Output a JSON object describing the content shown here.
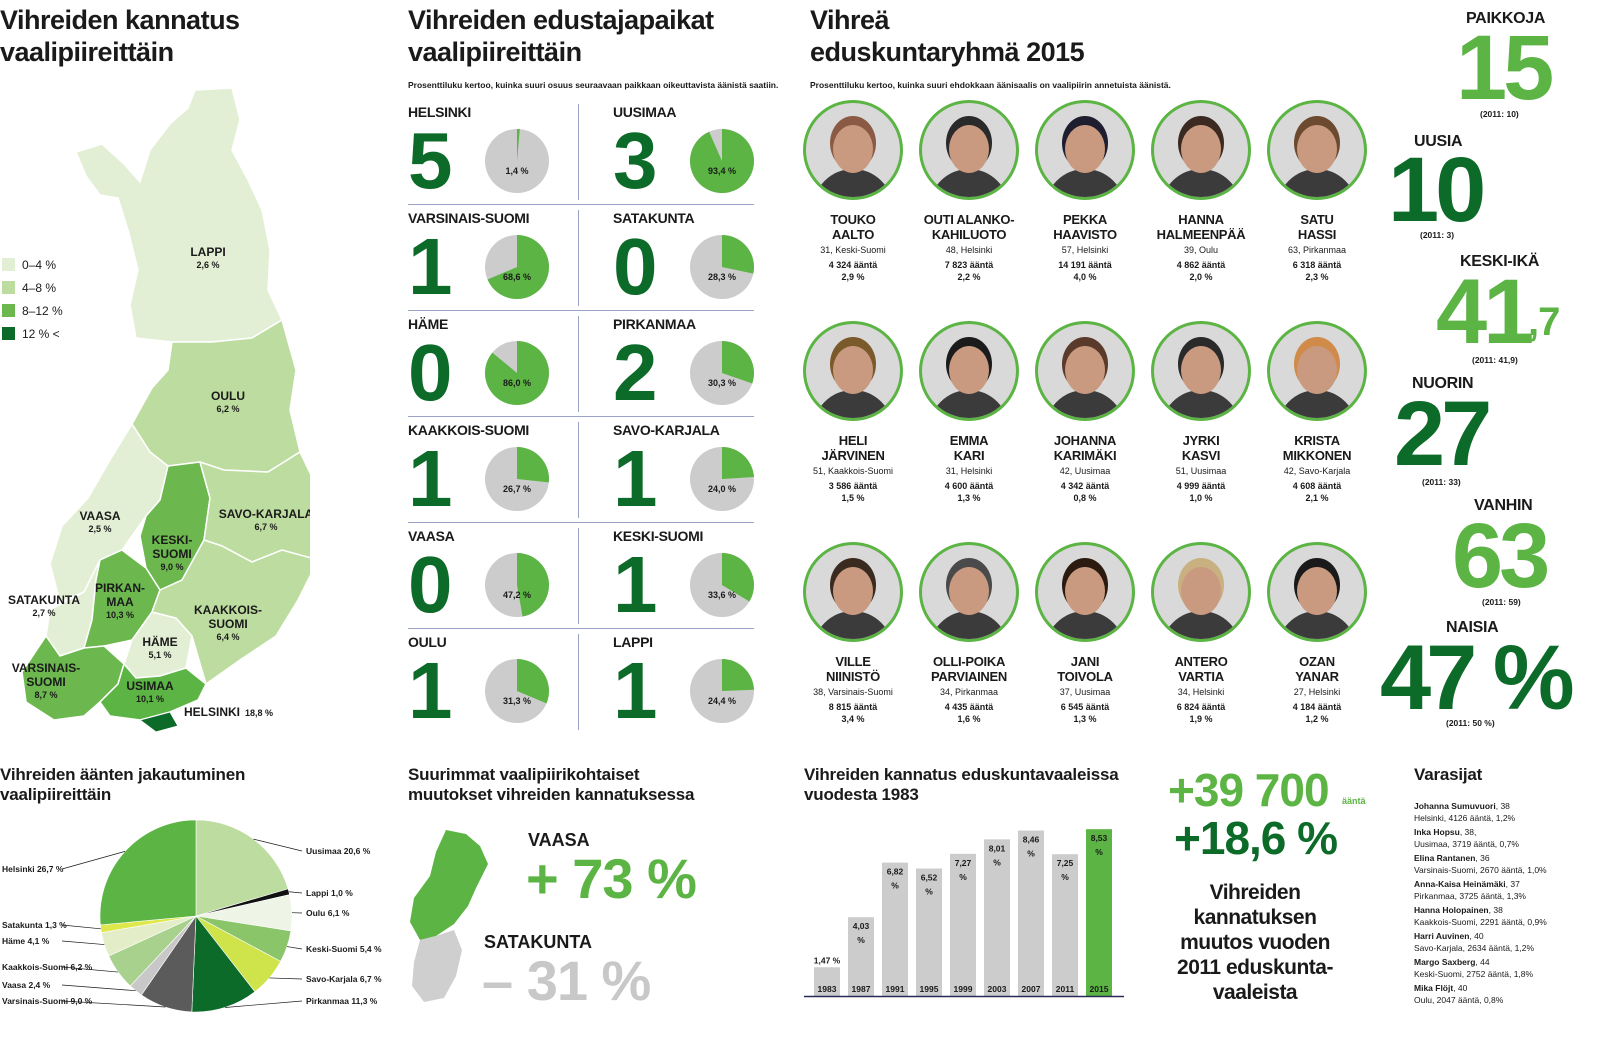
{
  "map_section": {
    "title": [
      "Vihreiden kannatus",
      "vaalipiireittäin"
    ],
    "legend": [
      "0–4 %",
      "4–8 %",
      "8–12 %",
      "12 % <"
    ],
    "legend_colors": [
      "#e2efd5",
      "#bddc9f",
      "#6cb84e",
      "#0d6b2a"
    ],
    "regions": [
      {
        "name": "LAPPI",
        "value": "2,6 %"
      },
      {
        "name": "OULU",
        "value": "6,2 %"
      },
      {
        "name": "VAASA",
        "value": "2,5 %"
      },
      {
        "name": "KESKI-SUOMI",
        "value": "9,0 %",
        "lines": [
          "KESKI-",
          "SUOMI"
        ]
      },
      {
        "name": "SAVO-KARJALA",
        "value": "6,7 %"
      },
      {
        "name": "SATAKUNTA",
        "value": "2,7 %"
      },
      {
        "name": "PIRKANMAA",
        "value": "10,3 %",
        "lines": [
          "PIRKAN-",
          "MAA"
        ]
      },
      {
        "name": "KAAKKOIS-SUOMI",
        "value": "6,4 %",
        "lines": [
          "KAAKKOIS-",
          "SUOMI"
        ]
      },
      {
        "name": "HÄME",
        "value": "5,1 %"
      },
      {
        "name": "VARSINAIS-SUOMI",
        "value": "8,7 %",
        "lines": [
          "VARSINAIS-",
          "SUOMI"
        ]
      },
      {
        "name": "USIMAA",
        "value": "10,1 %"
      },
      {
        "name": "HELSINKI",
        "value": "18,8 %"
      }
    ]
  },
  "seats_section": {
    "title": [
      "Vihreiden edustajapaikat",
      "vaalipiireittäin"
    ],
    "note": "Prosenttiluku kertoo, kuinka suuri osuus seuraavaan paikkaan oikeuttavista äänistä saatiin.",
    "districts": [
      {
        "name": "HELSINKI",
        "seats": "5",
        "pct_label": "1,4 %",
        "pct": 1.4
      },
      {
        "name": "UUSIMAA",
        "seats": "3",
        "pct_label": "93,4 %",
        "pct": 93.4
      },
      {
        "name": "VARSINAIS-SUOMI",
        "seats": "1",
        "pct_label": "68,6 %",
        "pct": 68.6
      },
      {
        "name": "SATAKUNTA",
        "seats": "0",
        "pct_label": "28,3 %",
        "pct": 28.3
      },
      {
        "name": "HÄME",
        "seats": "0",
        "pct_label": "86,0 %",
        "pct": 86.0
      },
      {
        "name": "PIRKANMAA",
        "seats": "2",
        "pct_label": "30,3 %",
        "pct": 30.3
      },
      {
        "name": "KAAKKOIS-SUOMI",
        "seats": "1",
        "pct_label": "26,7 %",
        "pct": 26.7
      },
      {
        "name": "SAVO-KARJALA",
        "seats": "1",
        "pct_label": "24,0 %",
        "pct": 24.0
      },
      {
        "name": "VAASA",
        "seats": "0",
        "pct_label": "47,2 %",
        "pct": 47.2
      },
      {
        "name": "KESKI-SUOMI",
        "seats": "1",
        "pct_label": "33,6 %",
        "pct": 33.6
      },
      {
        "name": "OULU",
        "seats": "1",
        "pct_label": "31,3 %",
        "pct": 31.3
      },
      {
        "name": "LAPPI",
        "seats": "1",
        "pct_label": "24,4 %",
        "pct": 24.4
      }
    ]
  },
  "group_section": {
    "title": [
      "Vihreä",
      "eduskuntaryhmä 2015"
    ],
    "note": "Prosenttiluku kertoo, kuinka suuri ehdokkaan äänisaalis on vaalipiirin annetuista äänistä.",
    "members": [
      {
        "name": [
          "TOUKO",
          "AALTO"
        ],
        "info": "31, Keski-Suomi",
        "votes": "4 324 ääntä",
        "pct": "2,9 %"
      },
      {
        "name": [
          "OUTI ALANKO-",
          "KAHILUOTO"
        ],
        "info": "48, Helsinki",
        "votes": "7 823 ääntä",
        "pct": "2,2 %"
      },
      {
        "name": [
          "PEKKA",
          "HAAVISTO"
        ],
        "info": "57, Helsinki",
        "votes": "14 191 ääntä",
        "pct": "4,0 %"
      },
      {
        "name": [
          "HANNA",
          "HALMEENPÄÄ"
        ],
        "info": "39, Oulu",
        "votes": "4 862 ääntä",
        "pct": "2,0 %"
      },
      {
        "name": [
          "SATU",
          "HASSI"
        ],
        "info": "63, Pirkanmaa",
        "votes": "6 318 ääntä",
        "pct": "2,3 %"
      },
      {
        "name": [
          "HELI",
          "JÄRVINEN"
        ],
        "info": "51, Kaakkois-Suomi",
        "votes": "3 586 ääntä",
        "pct": "1,5 %"
      },
      {
        "name": [
          "EMMA",
          "KARI"
        ],
        "info": "31, Helsinki",
        "votes": "4 600 ääntä",
        "pct": "1,3 %"
      },
      {
        "name": [
          "JOHANNA",
          "KARIMÄKI"
        ],
        "info": "42, Uusimaa",
        "votes": "4 342 ääntä",
        "pct": "0,8 %"
      },
      {
        "name": [
          "JYRKI",
          "KASVI"
        ],
        "info": "51, Uusimaa",
        "votes": "4 999 ääntä",
        "pct": "1,0 %"
      },
      {
        "name": [
          "KRISTA",
          "MIKKONEN"
        ],
        "info": "42, Savo-Karjala",
        "votes": "4 608 ääntä",
        "pct": "2,1 %"
      },
      {
        "name": [
          "VILLE",
          "NIINISTÖ"
        ],
        "info": "38, Varsinais-Suomi",
        "votes": "8 815 ääntä",
        "pct": "3,4 %"
      },
      {
        "name": [
          "OLLI-POIKA",
          "PARVIAINEN"
        ],
        "info": "34, Pirkanmaa",
        "votes": "4 435 ääntä",
        "pct": "1,6 %"
      },
      {
        "name": [
          "JANI",
          "TOIVOLA"
        ],
        "info": "37, Uusimaa",
        "votes": "6 545 ääntä",
        "pct": "1,3 %"
      },
      {
        "name": [
          "ANTERO",
          "VARTIA"
        ],
        "info": "34, Helsinki",
        "votes": "6 824 ääntä",
        "pct": "1,9 %"
      },
      {
        "name": [
          "OZAN",
          "YANAR"
        ],
        "info": "27, Helsinki",
        "votes": "4 184 ääntä",
        "pct": "1,2 %"
      }
    ]
  },
  "stats": {
    "paikkoja": {
      "label": "PAIKKOJA",
      "value": "15",
      "prev": "(2011: 10)"
    },
    "uusia": {
      "label": "UUSIA",
      "value": "10",
      "prev": "(2011: 3)"
    },
    "keski_ika": {
      "label": "KESKI-IKÄ",
      "value": "41",
      "decimal": ",7",
      "prev": "(2011: 41,9)"
    },
    "nuorin": {
      "label": "NUORIN",
      "value": "27",
      "prev": "(2011: 33)"
    },
    "vanhin": {
      "label": "VANHIN",
      "value": "63",
      "prev": "(2011: 59)"
    },
    "naisia": {
      "label": "NAISIA",
      "value": "47 %",
      "prev": "(2011: 50 %)"
    }
  },
  "distribution": {
    "title": [
      "Vihreiden äänten jakautuminen",
      "vaalipiireittäin"
    ]
  },
  "changes": {
    "title": [
      "Suurimmat vaalipiirikohtaiset",
      "muutokset vihreiden kannatuksessa"
    ],
    "vaasa": {
      "name": "VAASA",
      "value": "+ 73 %"
    },
    "satakunta": {
      "name": "SATAKUNTA",
      "value": "– 31 %"
    }
  },
  "history": {
    "title": [
      "Vihreiden kannatus eduskuntavaaleissa",
      "vuodesta 1983"
    ]
  },
  "totals": {
    "votes_big": "+39 700",
    "votes_unit": "ääntä",
    "pct_big": "+18,6 %",
    "caption": [
      "Vihreiden",
      "kannatuksen",
      "muutos vuoden",
      "2011 eduskunta-",
      "vaaleista"
    ]
  },
  "substitutes": {
    "title": "Varasijat",
    "items": [
      {
        "name": "Johanna Sumuvuori",
        "age": ", 38",
        "detail": "Helsinki, 4126 ääntä, 1,2%"
      },
      {
        "name": "Inka Hopsu",
        "age": ", 38,",
        "detail": "Uusimaa, 3719 ääntä, 0,7%"
      },
      {
        "name": "Elina Rantanen",
        "age": ", 36",
        "detail": "Varsinais-Suomi, 2670 ääntä, 1,0%"
      },
      {
        "name": "Anna-Kaisa Heinämäki",
        "age": ", 37",
        "detail": "Pirkanmaa, 3725 ääntä, 1,3%"
      },
      {
        "name": "Hanna Holopainen",
        "age": ", 38",
        "detail": "Kaakkois-Suomi, 2291 ääntä, 0,9%"
      },
      {
        "name": "Harri Auvinen",
        "age": ", 40",
        "detail": "Savo-Karjala, 2634 ääntä, 1,2%"
      },
      {
        "name": "Margo Saxberg",
        "age": ", 44",
        "detail": "Keski-Suomi, 2752 ääntä, 1,8%"
      },
      {
        "name": "Mika Flöjt",
        "age": ", 40",
        "detail": "Oulu, 2047 ääntä, 0,8%"
      }
    ]
  },
  "chart_data": [
    {
      "type": "pie",
      "title": "Vihreiden äänten jakautuminen vaalipiireittäin",
      "slices": [
        {
          "label": "Uusimaa 20,6 %",
          "value": 20.6,
          "color": "#bddc9f"
        },
        {
          "label": "Lappi 1,0 %",
          "value": 1.0,
          "color": "#111111"
        },
        {
          "label": "Oulu 6,1 %",
          "value": 6.1,
          "color": "#eef5e6"
        },
        {
          "label": "Keski-Suomi 5,4 %",
          "value": 5.4,
          "color": "#8bc56a"
        },
        {
          "label": "Savo-Karjala 6,7 %",
          "value": 6.7,
          "color": "#cfe34b"
        },
        {
          "label": "Pirkanmaa 11,3 %",
          "value": 11.3,
          "color": "#0d6b2a"
        },
        {
          "label": "Varsinais-Suomi 9,0 %",
          "value": 9.0,
          "color": "#5b5b5b"
        },
        {
          "label": "Vaasa 2,4 %",
          "value": 2.4,
          "color": "#c8c8c8"
        },
        {
          "label": "Kaakkois-Suomi 6,2 %",
          "value": 6.2,
          "color": "#a9d18e"
        },
        {
          "label": "Häme 4,1 %",
          "value": 4.1,
          "color": "#e3eec9"
        },
        {
          "label": "Satakunta 1,3 %",
          "value": 1.3,
          "color": "#dfe84a"
        },
        {
          "label": "Helsinki 26,7 %",
          "value": 26.7,
          "color": "#5bb443"
        }
      ]
    },
    {
      "type": "bar",
      "title": "Vihreiden kannatus eduskuntavaaleissa vuodesta 1983",
      "categories": [
        "1983",
        "1987",
        "1991",
        "1995",
        "1999",
        "2003",
        "2007",
        "2011",
        "2015"
      ],
      "values": [
        1.47,
        4.03,
        6.82,
        6.52,
        7.27,
        8.01,
        8.46,
        7.25,
        8.53
      ],
      "labels": [
        "1,47 %",
        "4,03 %",
        "6,82 %",
        "6,52 %",
        "7,27 %",
        "8,01 %",
        "8,46 %",
        "7,25 %",
        "8,53 %"
      ],
      "highlight": "2015",
      "colors": {
        "bar": "#cccccc",
        "highlight": "#5bb443"
      }
    }
  ]
}
